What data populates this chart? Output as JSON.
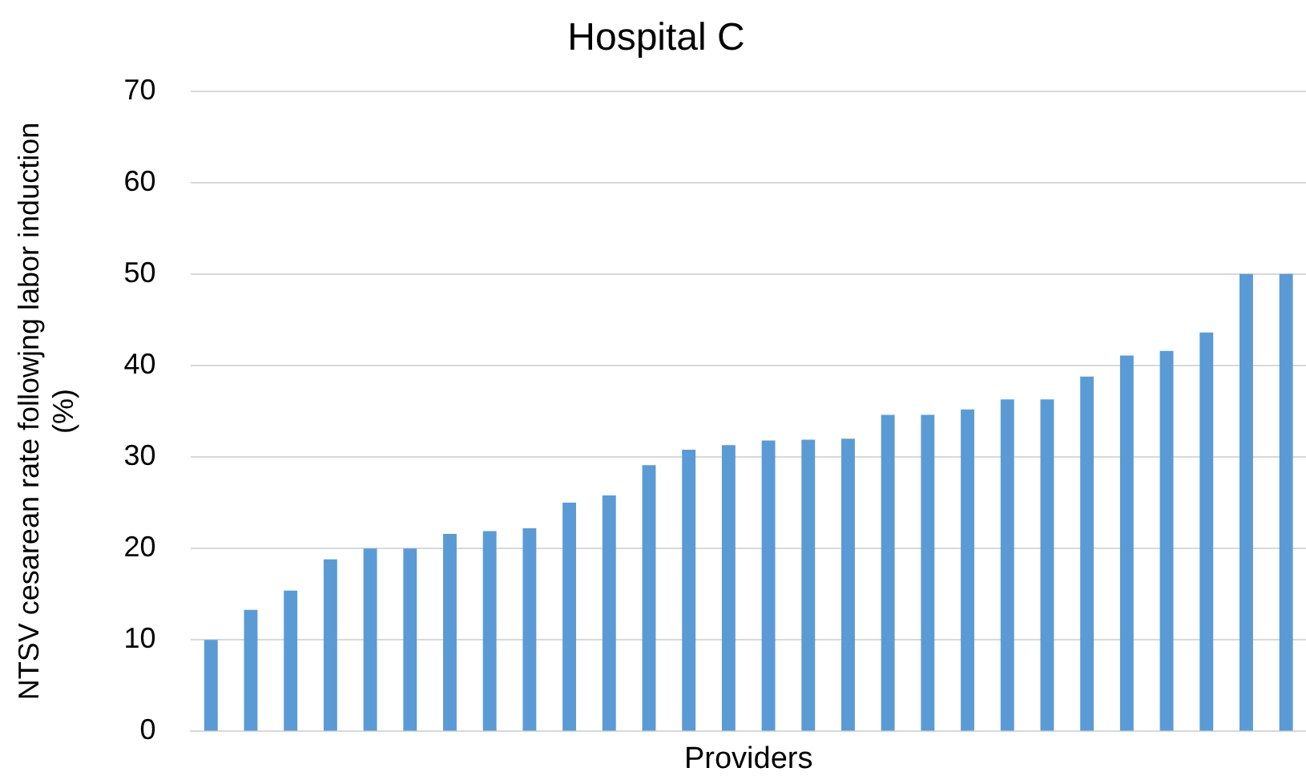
{
  "chart_data": {
    "type": "bar",
    "title": "Hospital C",
    "xlabel": "Providers",
    "ylabel": "NTSV cesarean rate followjng labor induction (%)",
    "categories": [
      null,
      null,
      null,
      null,
      null,
      null,
      null,
      null,
      null,
      null,
      null,
      null,
      null,
      null,
      null,
      null,
      null,
      null,
      null,
      null,
      null,
      null,
      null,
      null,
      null,
      null,
      null,
      null
    ],
    "values": [
      10,
      13.3,
      15.4,
      18.8,
      20,
      20,
      21.6,
      21.9,
      22.2,
      25,
      25.8,
      29.1,
      30.8,
      31.3,
      31.8,
      31.9,
      32,
      34.6,
      34.6,
      35.2,
      36.3,
      36.3,
      38.8,
      41.1,
      41.6,
      43.6,
      50,
      50
    ],
    "color": "#5b9bd5",
    "ylim": [
      0,
      70
    ],
    "yticks": [
      0,
      10,
      20,
      30,
      40,
      50,
      60,
      70
    ],
    "grid": "y",
    "legend": false
  }
}
